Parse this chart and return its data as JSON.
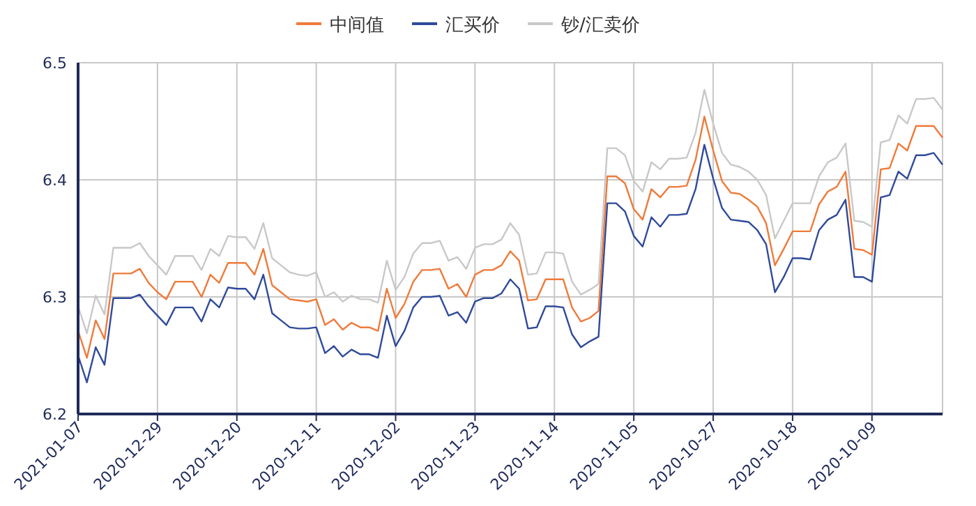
{
  "chart_data": {
    "type": "line",
    "legend": "top",
    "grid": true,
    "marker": "none",
    "line_style": "solid",
    "x": [
      "2021-01-07",
      "2021-01-06",
      "2021-01-05",
      "2021-01-04",
      "2021-01-03",
      "2021-01-02",
      "2021-01-01",
      "2020-12-31",
      "2020-12-30",
      "2020-12-29",
      "2020-12-28",
      "2020-12-27",
      "2020-12-26",
      "2020-12-25",
      "2020-12-24",
      "2020-12-23",
      "2020-12-22",
      "2020-12-21",
      "2020-12-20",
      "2020-12-19",
      "2020-12-18",
      "2020-12-17",
      "2020-12-16",
      "2020-12-15",
      "2020-12-14",
      "2020-12-13",
      "2020-12-12",
      "2020-12-11",
      "2020-12-10",
      "2020-12-09",
      "2020-12-08",
      "2020-12-07",
      "2020-12-06",
      "2020-12-05",
      "2020-12-04",
      "2020-12-03",
      "2020-12-02",
      "2020-12-01",
      "2020-11-30",
      "2020-11-29",
      "2020-11-28",
      "2020-11-27",
      "2020-11-26",
      "2020-11-25",
      "2020-11-24",
      "2020-11-23",
      "2020-11-22",
      "2020-11-21",
      "2020-11-20",
      "2020-11-19",
      "2020-11-18",
      "2020-11-17",
      "2020-11-16",
      "2020-11-15",
      "2020-11-14",
      "2020-11-13",
      "2020-11-12",
      "2020-11-11",
      "2020-11-10",
      "2020-11-09",
      "2020-11-08",
      "2020-11-07",
      "2020-11-06",
      "2020-11-05",
      "2020-11-04",
      "2020-11-03",
      "2020-11-02",
      "2020-11-01",
      "2020-10-31",
      "2020-10-30",
      "2020-10-29",
      "2020-10-28",
      "2020-10-27",
      "2020-10-26",
      "2020-10-25",
      "2020-10-24",
      "2020-10-23",
      "2020-10-22",
      "2020-10-21",
      "2020-10-20",
      "2020-10-19",
      "2020-10-18",
      "2020-10-17",
      "2020-10-16",
      "2020-10-15",
      "2020-10-14",
      "2020-10-13",
      "2020-10-12",
      "2020-10-11",
      "2020-10-10",
      "2020-10-09",
      "2020-10-08",
      "2020-10-07",
      "2020-10-06",
      "2020-10-05",
      "2020-10-04",
      "2020-10-03",
      "2020-10-02",
      "2020-10-01"
    ],
    "xlim": [
      "2021-01-07",
      "2020-10-01"
    ],
    "xticks": [
      "2021-01-07",
      "2020-12-29",
      "2020-12-20",
      "2020-12-11",
      "2020-12-02",
      "2020-11-23",
      "2020-11-14",
      "2020-11-05",
      "2020-10-27",
      "2020-10-18",
      "2020-10-09"
    ],
    "ylim": [
      6.2,
      6.5
    ],
    "yticks": [
      6.2,
      6.3,
      6.4,
      6.5
    ],
    "series": [
      {
        "name": "中间值",
        "color": "#f07a3a",
        "values": [
          6.271,
          6.248,
          6.28,
          6.264,
          6.32,
          6.32,
          6.32,
          6.324,
          6.312,
          6.304,
          6.298,
          6.313,
          6.313,
          6.313,
          6.3,
          6.319,
          6.312,
          6.329,
          6.329,
          6.329,
          6.319,
          6.341,
          6.31,
          6.304,
          6.298,
          6.297,
          6.296,
          6.298,
          6.276,
          6.281,
          6.272,
          6.278,
          6.274,
          6.274,
          6.271,
          6.307,
          6.282,
          6.294,
          6.313,
          6.323,
          6.323,
          6.324,
          6.307,
          6.311,
          6.3,
          6.319,
          6.323,
          6.323,
          6.327,
          6.339,
          6.331,
          6.297,
          6.298,
          6.315,
          6.315,
          6.315,
          6.291,
          6.279,
          6.282,
          6.288,
          6.403,
          6.403,
          6.397,
          6.375,
          6.366,
          6.392,
          6.385,
          6.394,
          6.394,
          6.395,
          6.417,
          6.454,
          6.425,
          6.399,
          6.389,
          6.388,
          6.383,
          6.377,
          6.363,
          6.327,
          6.341,
          6.356,
          6.356,
          6.356,
          6.379,
          6.39,
          6.394,
          6.407,
          6.341,
          6.34,
          6.336,
          6.409,
          6.41,
          6.431,
          6.425,
          6.446,
          6.446,
          6.446,
          6.436
        ]
      },
      {
        "name": "汇买价",
        "color": "#2f4a9a",
        "values": [
          6.25,
          6.227,
          6.257,
          6.242,
          6.299,
          6.299,
          6.299,
          6.302,
          6.292,
          6.284,
          6.276,
          6.291,
          6.291,
          6.291,
          6.279,
          6.298,
          6.291,
          6.308,
          6.307,
          6.307,
          6.298,
          6.319,
          6.286,
          6.28,
          6.274,
          6.273,
          6.273,
          6.274,
          6.252,
          6.258,
          6.249,
          6.255,
          6.251,
          6.251,
          6.248,
          6.284,
          6.258,
          6.271,
          6.291,
          6.3,
          6.3,
          6.301,
          6.284,
          6.287,
          6.278,
          6.296,
          6.299,
          6.299,
          6.303,
          6.315,
          6.307,
          6.273,
          6.274,
          6.292,
          6.292,
          6.291,
          6.268,
          6.257,
          6.262,
          6.266,
          6.38,
          6.38,
          6.373,
          6.352,
          6.343,
          6.368,
          6.36,
          6.37,
          6.37,
          6.371,
          6.392,
          6.43,
          6.401,
          6.376,
          6.366,
          6.365,
          6.364,
          6.357,
          6.345,
          6.304,
          6.317,
          6.333,
          6.333,
          6.332,
          6.357,
          6.366,
          6.37,
          6.383,
          6.317,
          6.317,
          6.313,
          6.385,
          6.387,
          6.407,
          6.401,
          6.421,
          6.421,
          6.423,
          6.413
        ]
      },
      {
        "name": "钞/汇卖价",
        "color": "#c8c8c8",
        "values": [
          6.292,
          6.269,
          6.301,
          6.285,
          6.342,
          6.342,
          6.342,
          6.346,
          6.335,
          6.327,
          6.319,
          6.335,
          6.335,
          6.335,
          6.323,
          6.341,
          6.335,
          6.352,
          6.351,
          6.351,
          6.341,
          6.363,
          6.333,
          6.327,
          6.321,
          6.319,
          6.318,
          6.321,
          6.3,
          6.304,
          6.296,
          6.301,
          6.298,
          6.298,
          6.295,
          6.331,
          6.306,
          6.317,
          6.337,
          6.346,
          6.346,
          6.348,
          6.331,
          6.334,
          6.324,
          6.342,
          6.345,
          6.345,
          6.349,
          6.363,
          6.353,
          6.319,
          6.32,
          6.338,
          6.338,
          6.337,
          6.313,
          6.302,
          6.306,
          6.311,
          6.427,
          6.427,
          6.421,
          6.399,
          6.39,
          6.415,
          6.409,
          6.418,
          6.418,
          6.419,
          6.44,
          6.477,
          6.448,
          6.423,
          6.413,
          6.411,
          6.407,
          6.4,
          6.387,
          6.35,
          6.365,
          6.38,
          6.38,
          6.38,
          6.403,
          6.415,
          6.419,
          6.431,
          6.365,
          6.364,
          6.36,
          6.432,
          6.434,
          6.455,
          6.448,
          6.469,
          6.469,
          6.47,
          6.46
        ]
      }
    ]
  }
}
